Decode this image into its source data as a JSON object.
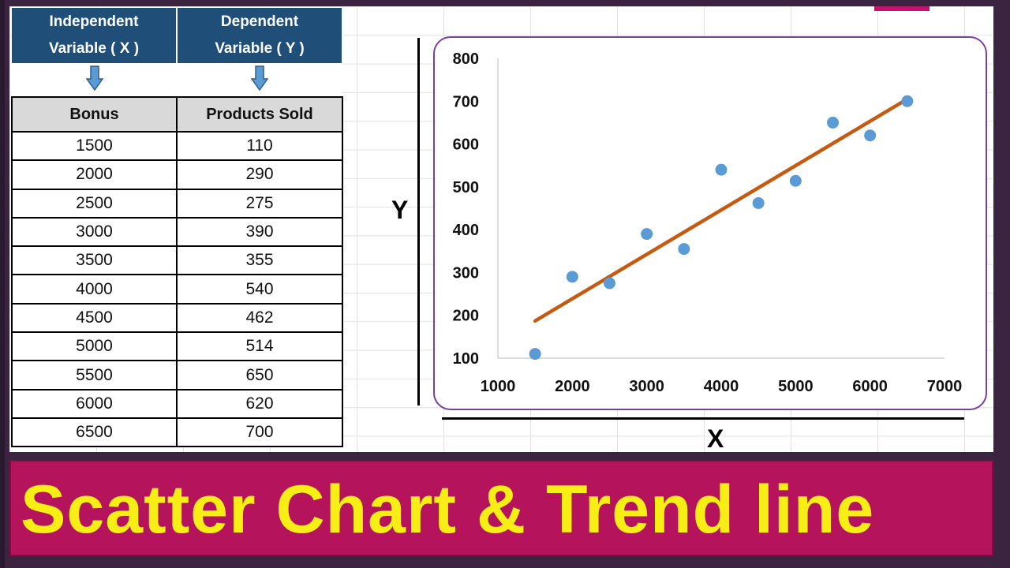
{
  "table": {
    "header_x": [
      "Independent",
      "Variable ( X )"
    ],
    "header_y": [
      "Dependent",
      "Variable ( Y )"
    ],
    "col1": "Bonus",
    "col2": "Products Sold",
    "rows": [
      [
        "1500",
        "110"
      ],
      [
        "2000",
        "290"
      ],
      [
        "2500",
        "275"
      ],
      [
        "3000",
        "390"
      ],
      [
        "3500",
        "355"
      ],
      [
        "4000",
        "540"
      ],
      [
        "4500",
        "462"
      ],
      [
        "5000",
        "514"
      ],
      [
        "5500",
        "650"
      ],
      [
        "6000",
        "620"
      ],
      [
        "6500",
        "700"
      ]
    ]
  },
  "axis_labels": {
    "x": "X",
    "y": "Y"
  },
  "banner": {
    "text": "Scatter Chart & Trend line"
  },
  "colors": {
    "header_bg": "#1f4e79",
    "point": "#5b9bd5",
    "trend": "#c55a11",
    "banner_bg": "#b5145d",
    "banner_text": "#f6ee14",
    "chart_border": "#7a3fa0"
  },
  "chart_data": {
    "type": "scatter",
    "x": [
      1500,
      2000,
      2500,
      3000,
      3500,
      4000,
      4500,
      5000,
      5500,
      6000,
      6500
    ],
    "y": [
      110,
      290,
      275,
      390,
      355,
      540,
      462,
      514,
      650,
      620,
      700
    ],
    "trendline": {
      "x": [
        1500,
        6500
      ],
      "y": [
        187,
        705
      ]
    },
    "xlim": [
      1000,
      7000
    ],
    "ylim": [
      100,
      800
    ],
    "xticks": [
      1000,
      2000,
      3000,
      4000,
      5000,
      6000,
      7000
    ],
    "yticks": [
      100,
      200,
      300,
      400,
      500,
      600,
      700,
      800
    ],
    "grid": false,
    "legend": "none"
  }
}
